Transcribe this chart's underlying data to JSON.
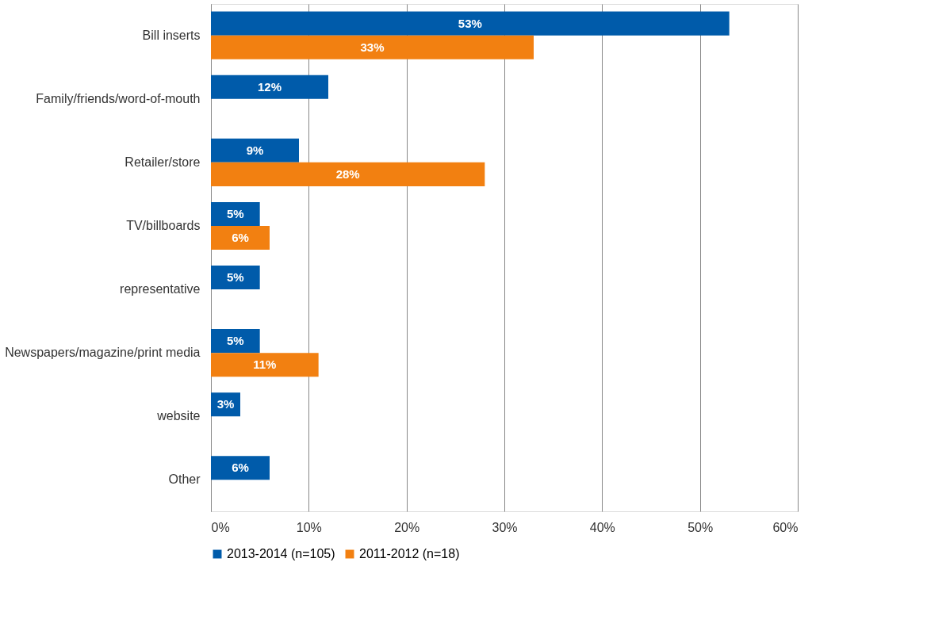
{
  "chart_data": {
    "type": "bar",
    "orientation": "horizontal",
    "categories": [
      "Bill inserts",
      "Family/friends/word-of-mouth",
      "Retailer/store",
      "TV/billboards",
      "representative",
      "Newspapers/magazine/print media",
      "website",
      "Other"
    ],
    "series": [
      {
        "name": "2013-2014 (n=105)",
        "color": "#005baa",
        "values": [
          53,
          12,
          9,
          5,
          5,
          5,
          3,
          6
        ],
        "value_labels": [
          "53%",
          "12%",
          "9%",
          "5%",
          "5%",
          "5%",
          "3%",
          "6%"
        ]
      },
      {
        "name": "2011-2012 (n=18)",
        "color": "#f28011",
        "values": [
          33,
          null,
          28,
          6,
          null,
          11,
          null,
          null
        ],
        "value_labels": [
          "33%",
          null,
          "28%",
          "6%",
          null,
          "11%",
          null,
          null
        ]
      }
    ],
    "xlim": [
      0,
      60
    ],
    "xticks": [
      {
        "value": 0,
        "label": "0%"
      },
      {
        "value": 10,
        "label": "10%"
      },
      {
        "value": 20,
        "label": "20%"
      },
      {
        "value": 30,
        "label": "30%"
      },
      {
        "value": 40,
        "label": "40%"
      },
      {
        "value": 50,
        "label": "50%"
      },
      {
        "value": 60,
        "label": "60%"
      }
    ],
    "grid": "x",
    "legend": "bottom"
  }
}
